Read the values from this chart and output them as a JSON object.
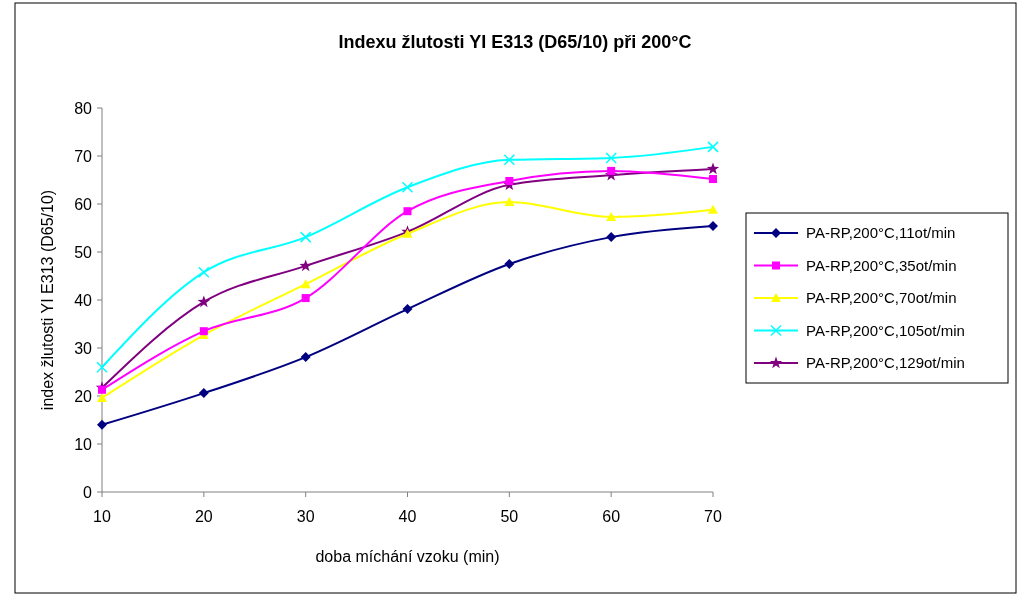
{
  "chart_data": {
    "type": "line",
    "title": "Indexu žlutosti YI E313 (D65/10) při 200°C",
    "xlabel": "doba míchání vzoku (min)",
    "ylabel": "index žlutosti YI E313 (D65/10)",
    "x": [
      10,
      20,
      30,
      40,
      50,
      60,
      70
    ],
    "xlim": [
      10,
      70
    ],
    "xticks": [
      10,
      20,
      30,
      40,
      50,
      60,
      70
    ],
    "ylim": [
      0,
      80
    ],
    "yticks": [
      0,
      10,
      20,
      30,
      40,
      50,
      60,
      70,
      80
    ],
    "legend": "right",
    "grid": false,
    "series": [
      {
        "name": "PA-RP,200°C,11ot/min",
        "color": "#000080",
        "marker": "diamond",
        "values": [
          14,
          20.6,
          28.1,
          38.1,
          47.5,
          53.1,
          55.4
        ]
      },
      {
        "name": "PA-RP,200°C,35ot/min",
        "color": "#ff00ff",
        "marker": "square",
        "values": [
          21.3,
          33.5,
          40.4,
          58.5,
          64.8,
          66.9,
          65.2
        ]
      },
      {
        "name": "PA-RP,200°C,70ot/min",
        "color": "#ffff00",
        "marker": "triangle",
        "values": [
          19.6,
          32.7,
          43.3,
          53.8,
          60.4,
          57.3,
          58.8
        ]
      },
      {
        "name": "PA-RP,200°C,105ot/min",
        "color": "#00ffff",
        "marker": "cross",
        "values": [
          26,
          45.8,
          53.1,
          63.5,
          69.2,
          69.6,
          71.9
        ]
      },
      {
        "name": "PA-RP,200°C,129ot/min",
        "color": "#800080",
        "marker": "star",
        "values": [
          21.7,
          39.6,
          47.1,
          54.2,
          64,
          66,
          67.3
        ]
      }
    ]
  }
}
